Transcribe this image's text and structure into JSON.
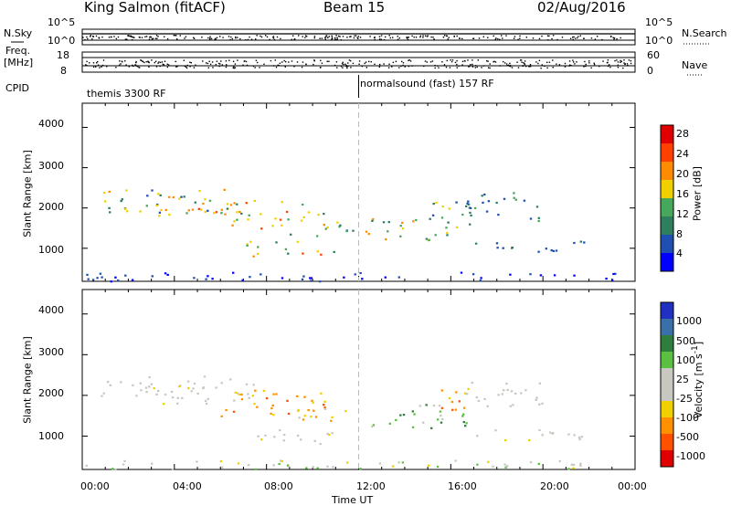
{
  "header": {
    "station": "King Salmon (fitACF)",
    "beam": "Beam 15",
    "date": "02/Aug/2016"
  },
  "side_labels": {
    "nsky": "N.Sky",
    "nsky_top": "10^5",
    "nsky_bottom": "10^0",
    "nsearch": "N.Search",
    "nsearch_top": "10^5",
    "nsearch_bottom": "10^0",
    "freq": "Freq.",
    "freq_unit": "[MHz]",
    "freq_top": "18",
    "freq_bottom": "8",
    "nave": "Nave",
    "nave_top": "60",
    "nave_bottom": "0",
    "cpid": "CPID"
  },
  "cpid_modes": [
    "themis 3300 RF",
    "normalsound (fast) 157 RF"
  ],
  "colors": {
    "axis": "#000000",
    "divider": "#bbbbbb",
    "power_scale": [
      "#0000ff",
      "#1f4fb0",
      "#2e7f5e",
      "#45a85a",
      "#f0d000",
      "#ff8c00",
      "#ff4000",
      "#e00000"
    ],
    "velocity_scale": [
      "#2030c0",
      "#3a6fa8",
      "#2e7f3e",
      "#5ac040",
      "#c8c8c0",
      "#c8c8c0",
      "#f0d000",
      "#ff9000",
      "#ff5000",
      "#e00000"
    ]
  },
  "chart_data": [
    {
      "type": "heatmap",
      "name": "power",
      "xlabel": "",
      "ylabel": "Slant Range [km]",
      "xlim": [
        0,
        24
      ],
      "ylim": [
        180,
        4600
      ],
      "x_ticks": [],
      "y_ticks": [
        "1000",
        "2000",
        "3000",
        "4000"
      ],
      "colorbar": {
        "label": "Power [dB]",
        "range": [
          0,
          32
        ],
        "ticks": [
          "4",
          "8",
          "12",
          "16",
          "20",
          "24",
          "28"
        ]
      },
      "regions": [
        {
          "x": [
            0.8,
            6.5
          ],
          "y": [
            1900,
            2500
          ],
          "level": [
            6,
            22
          ]
        },
        {
          "x": [
            3,
            7.5
          ],
          "y": [
            1800,
            2300
          ],
          "level": [
            14,
            28
          ]
        },
        {
          "x": [
            6,
            10.5
          ],
          "y": [
            1500,
            2200
          ],
          "level": [
            10,
            26
          ]
        },
        {
          "x": [
            7,
            11
          ],
          "y": [
            800,
            1200
          ],
          "level": [
            10,
            28
          ]
        },
        {
          "x": [
            9,
            11.8
          ],
          "y": [
            1300,
            1700
          ],
          "level": [
            6,
            20
          ]
        },
        {
          "x": [
            12.2,
            16.8
          ],
          "y": [
            1200,
            1800
          ],
          "level": [
            8,
            24
          ]
        },
        {
          "x": [
            15,
            17
          ],
          "y": [
            1600,
            2200
          ],
          "level": [
            6,
            18
          ]
        },
        {
          "x": [
            16.5,
            20
          ],
          "y": [
            1700,
            2400
          ],
          "level": [
            4,
            14
          ]
        },
        {
          "x": [
            17,
            22
          ],
          "y": [
            900,
            1200
          ],
          "level": [
            4,
            10
          ]
        },
        {
          "x": [
            0,
            24
          ],
          "y": [
            200,
            420
          ],
          "level": [
            2,
            8
          ]
        }
      ]
    },
    {
      "type": "heatmap",
      "name": "velocity",
      "xlabel": "Time UT",
      "ylabel": "Slant Range [km]",
      "xlim": [
        0,
        24
      ],
      "ylim": [
        180,
        4600
      ],
      "x_ticks": [
        "00:00",
        "04:00",
        "08:00",
        "12:00",
        "16:00",
        "20:00",
        "00:00"
      ],
      "y_ticks": [
        "1000",
        "2000",
        "3000",
        "4000"
      ],
      "colorbar": {
        "label": "Velocity [m s^-1]",
        "ticks": [
          "1000",
          "500",
          "100",
          "25",
          "-25",
          "-100",
          "-500",
          "-1000"
        ]
      },
      "regions": [
        {
          "x": [
            0.8,
            6.5
          ],
          "y": [
            1900,
            2500
          ],
          "level": [
            4,
            5
          ]
        },
        {
          "x": [
            3,
            7.5
          ],
          "y": [
            1800,
            2300
          ],
          "level": [
            4,
            6
          ]
        },
        {
          "x": [
            6,
            10.5
          ],
          "y": [
            1500,
            2200
          ],
          "level": [
            6,
            8
          ]
        },
        {
          "x": [
            7,
            11
          ],
          "y": [
            800,
            1200
          ],
          "level": [
            4,
            6
          ]
        },
        {
          "x": [
            9,
            11.8
          ],
          "y": [
            1300,
            1700
          ],
          "level": [
            5,
            7
          ]
        },
        {
          "x": [
            12.2,
            16.8
          ],
          "y": [
            1200,
            1800
          ],
          "level": [
            2,
            4
          ]
        },
        {
          "x": [
            15,
            17
          ],
          "y": [
            1600,
            2200
          ],
          "level": [
            6,
            8
          ]
        },
        {
          "x": [
            16.5,
            20
          ],
          "y": [
            1700,
            2400
          ],
          "level": [
            4,
            5
          ]
        },
        {
          "x": [
            17,
            22
          ],
          "y": [
            900,
            1200
          ],
          "level": [
            4,
            6
          ]
        },
        {
          "x": [
            0,
            24
          ],
          "y": [
            200,
            420
          ],
          "level": [
            3,
            6
          ]
        }
      ]
    }
  ]
}
